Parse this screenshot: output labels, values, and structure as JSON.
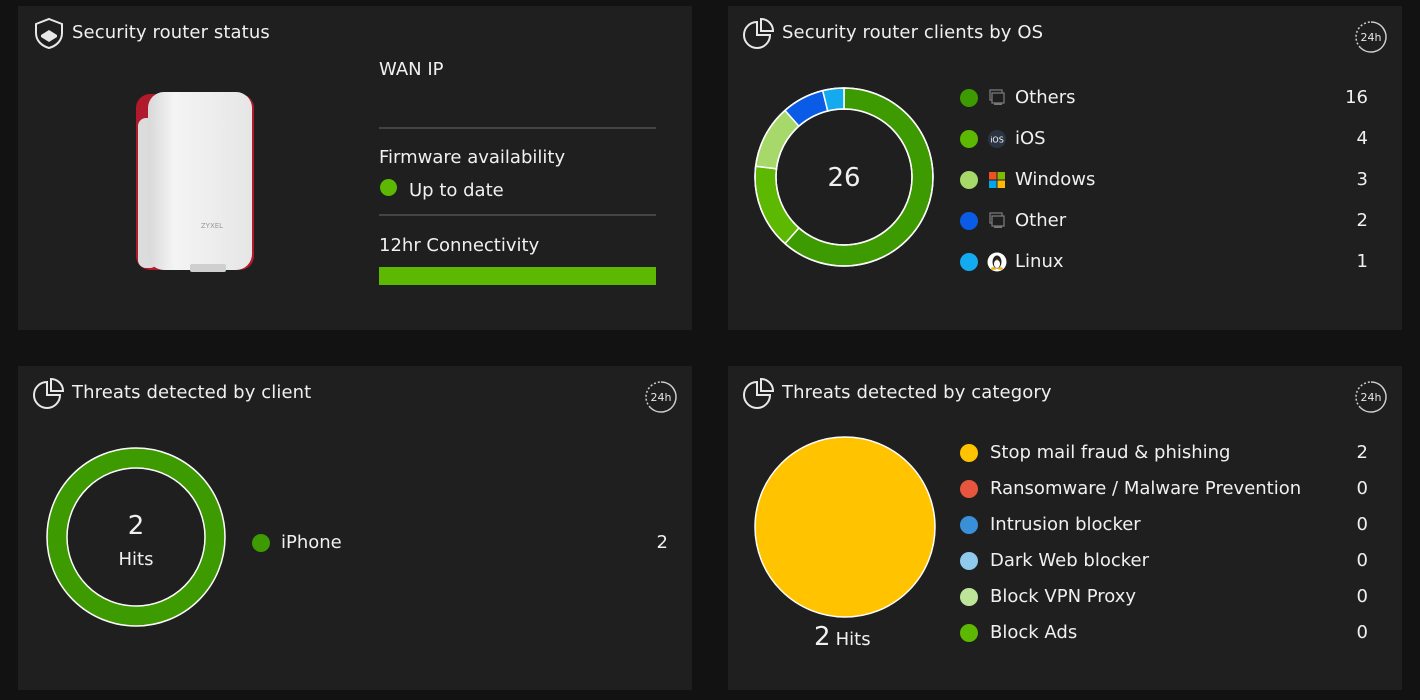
{
  "status_card": {
    "title": "Security router status",
    "wan_ip_label": "WAN IP",
    "firmware_label": "Firmware availability",
    "firmware_status": "Up to date",
    "firmware_status_color": "#5cb800",
    "connectivity_label": "12hr Connectivity",
    "connectivity_fraction": 1.0,
    "connectivity_color": "#5cb800",
    "device_brand": "ZYXEL"
  },
  "os_card": {
    "title": "Security router clients by OS",
    "period_badge": "24h",
    "total": "26",
    "items": [
      {
        "label": "Others",
        "value": "16",
        "color": "#3d9a00",
        "icon": "generic-device-icon"
      },
      {
        "label": "iOS",
        "value": "4",
        "color": "#5cb800",
        "icon": "ios-icon"
      },
      {
        "label": "Windows",
        "value": "3",
        "color": "#a6d96a",
        "icon": "windows-icon"
      },
      {
        "label": "Other",
        "value": "2",
        "color": "#0a5ce6",
        "icon": "generic-device-icon"
      },
      {
        "label": "Linux",
        "value": "1",
        "color": "#14aaf0",
        "icon": "linux-icon"
      }
    ]
  },
  "client_card": {
    "title": "Threats detected by client",
    "period_badge": "24h",
    "total": "2",
    "total_unit": "Hits",
    "items": [
      {
        "label": "iPhone",
        "value": "2",
        "color": "#3d9a00"
      }
    ]
  },
  "category_card": {
    "title": "Threats detected by category",
    "period_badge": "24h",
    "total": "2",
    "total_unit": "Hits",
    "items": [
      {
        "label": "Stop mail fraud & phishing",
        "value": "2",
        "color": "#ffc300"
      },
      {
        "label": "Ransomware / Malware Prevention",
        "value": "0",
        "color": "#e8553f"
      },
      {
        "label": "Intrusion blocker",
        "value": "0",
        "color": "#3a8fd9"
      },
      {
        "label": "Dark Web blocker",
        "value": "0",
        "color": "#8fc9ec"
      },
      {
        "label": "Block VPN Proxy",
        "value": "0",
        "color": "#bde59a"
      },
      {
        "label": "Block Ads",
        "value": "0",
        "color": "#5cb800"
      }
    ]
  }
}
